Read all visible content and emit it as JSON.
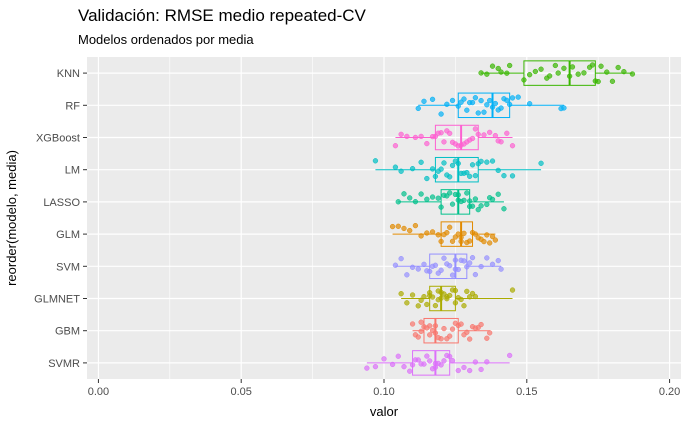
{
  "chart_data": {
    "type": "boxplot",
    "orientation": "horizontal",
    "title": "Validación: RMSE medio repeated-CV",
    "subtitle": "Modelos ordenados por media",
    "xlabel": "valor",
    "ylabel": "reorder(modelo, media)",
    "xlim": [
      -0.004,
      0.204
    ],
    "xticks": [
      "0.00",
      "0.05",
      "0.10",
      "0.15",
      "0.20"
    ],
    "grid": true,
    "panel_color": "#ebebeb",
    "series": [
      {
        "name": "KNN",
        "color": "#39b600",
        "min": 0.134,
        "q1": 0.149,
        "median": 0.165,
        "q3": 0.174,
        "max": 0.187,
        "points": [
          0.134,
          0.136,
          0.138,
          0.14,
          0.141,
          0.143,
          0.144,
          0.149,
          0.151,
          0.153,
          0.155,
          0.157,
          0.158,
          0.16,
          0.161,
          0.163,
          0.165,
          0.166,
          0.168,
          0.17,
          0.172,
          0.173,
          0.174,
          0.175,
          0.176,
          0.178,
          0.18,
          0.182,
          0.184,
          0.187
        ]
      },
      {
        "name": "RF",
        "color": "#00b0f6",
        "min": 0.112,
        "q1": 0.126,
        "median": 0.138,
        "q3": 0.144,
        "max": 0.163,
        "points": [
          0.112,
          0.114,
          0.117,
          0.12,
          0.122,
          0.124,
          0.126,
          0.127,
          0.128,
          0.129,
          0.13,
          0.131,
          0.132,
          0.133,
          0.134,
          0.135,
          0.136,
          0.137,
          0.138,
          0.139,
          0.14,
          0.141,
          0.142,
          0.143,
          0.144,
          0.145,
          0.147,
          0.151,
          0.162,
          0.163
        ]
      },
      {
        "name": "XGBoost",
        "color": "#fd61d1",
        "min": 0.104,
        "q1": 0.118,
        "median": 0.127,
        "q3": 0.133,
        "max": 0.145,
        "points": [
          0.104,
          0.106,
          0.108,
          0.111,
          0.113,
          0.115,
          0.117,
          0.118,
          0.119,
          0.12,
          0.121,
          0.122,
          0.123,
          0.124,
          0.125,
          0.126,
          0.127,
          0.128,
          0.129,
          0.13,
          0.131,
          0.132,
          0.133,
          0.135,
          0.137,
          0.139,
          0.14,
          0.141,
          0.143,
          0.145
        ]
      },
      {
        "name": "LM",
        "color": "#00bfc4",
        "min": 0.097,
        "q1": 0.118,
        "median": 0.126,
        "q3": 0.133,
        "max": 0.155,
        "points": [
          0.097,
          0.104,
          0.106,
          0.11,
          0.113,
          0.115,
          0.117,
          0.118,
          0.119,
          0.12,
          0.121,
          0.122,
          0.123,
          0.124,
          0.125,
          0.126,
          0.127,
          0.128,
          0.129,
          0.13,
          0.131,
          0.132,
          0.133,
          0.134,
          0.136,
          0.138,
          0.14,
          0.142,
          0.145,
          0.155
        ]
      },
      {
        "name": "LASSO",
        "color": "#00c08b",
        "min": 0.105,
        "q1": 0.12,
        "median": 0.126,
        "q3": 0.13,
        "max": 0.142,
        "points": [
          0.105,
          0.107,
          0.109,
          0.111,
          0.113,
          0.115,
          0.117,
          0.119,
          0.12,
          0.121,
          0.122,
          0.123,
          0.124,
          0.125,
          0.126,
          0.126,
          0.127,
          0.128,
          0.129,
          0.13,
          0.13,
          0.131,
          0.132,
          0.133,
          0.134,
          0.136,
          0.137,
          0.138,
          0.14,
          0.142
        ]
      },
      {
        "name": "GLM",
        "color": "#e18a00",
        "min": 0.103,
        "q1": 0.12,
        "median": 0.127,
        "q3": 0.131,
        "max": 0.139,
        "points": [
          0.103,
          0.105,
          0.107,
          0.109,
          0.111,
          0.113,
          0.115,
          0.117,
          0.119,
          0.12,
          0.121,
          0.122,
          0.123,
          0.124,
          0.125,
          0.126,
          0.127,
          0.127,
          0.128,
          0.129,
          0.13,
          0.131,
          0.132,
          0.133,
          0.134,
          0.135,
          0.136,
          0.137,
          0.138,
          0.139
        ]
      },
      {
        "name": "SVM",
        "color": "#9590ff",
        "min": 0.104,
        "q1": 0.116,
        "median": 0.125,
        "q3": 0.129,
        "max": 0.141,
        "points": [
          0.104,
          0.106,
          0.108,
          0.11,
          0.112,
          0.114,
          0.115,
          0.116,
          0.117,
          0.118,
          0.119,
          0.12,
          0.121,
          0.122,
          0.123,
          0.124,
          0.125,
          0.125,
          0.126,
          0.127,
          0.128,
          0.129,
          0.13,
          0.131,
          0.132,
          0.134,
          0.136,
          0.138,
          0.14,
          0.141
        ]
      },
      {
        "name": "GLMNET",
        "color": "#abab00",
        "min": 0.106,
        "q1": 0.116,
        "median": 0.12,
        "q3": 0.125,
        "max": 0.145,
        "points": [
          0.106,
          0.108,
          0.11,
          0.112,
          0.113,
          0.114,
          0.115,
          0.116,
          0.116,
          0.117,
          0.118,
          0.119,
          0.119,
          0.12,
          0.12,
          0.121,
          0.122,
          0.122,
          0.123,
          0.124,
          0.125,
          0.125,
          0.126,
          0.127,
          0.128,
          0.129,
          0.13,
          0.131,
          0.132,
          0.145
        ]
      },
      {
        "name": "GBM",
        "color": "#f8766d",
        "min": 0.11,
        "q1": 0.114,
        "median": 0.118,
        "q3": 0.126,
        "max": 0.137,
        "points": [
          0.11,
          0.111,
          0.112,
          0.113,
          0.113,
          0.114,
          0.115,
          0.116,
          0.116,
          0.117,
          0.118,
          0.118,
          0.119,
          0.12,
          0.121,
          0.122,
          0.123,
          0.124,
          0.125,
          0.126,
          0.127,
          0.128,
          0.129,
          0.13,
          0.131,
          0.132,
          0.133,
          0.134,
          0.136,
          0.137
        ]
      },
      {
        "name": "SVMR",
        "color": "#dc71fa",
        "min": 0.094,
        "q1": 0.11,
        "median": 0.118,
        "q3": 0.123,
        "max": 0.144,
        "points": [
          0.094,
          0.097,
          0.1,
          0.103,
          0.105,
          0.107,
          0.109,
          0.11,
          0.111,
          0.112,
          0.113,
          0.114,
          0.115,
          0.116,
          0.117,
          0.118,
          0.118,
          0.119,
          0.12,
          0.121,
          0.122,
          0.123,
          0.124,
          0.126,
          0.128,
          0.13,
          0.132,
          0.134,
          0.136,
          0.144
        ]
      }
    ]
  }
}
